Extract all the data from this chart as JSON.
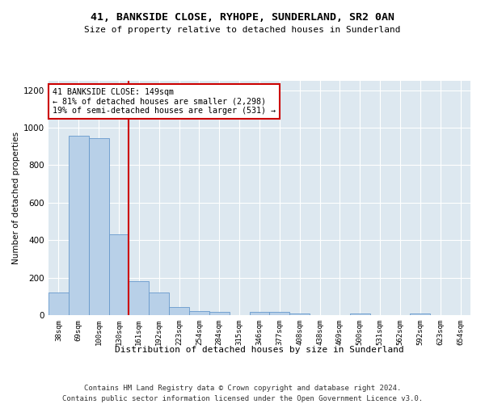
{
  "title": "41, BANKSIDE CLOSE, RYHOPE, SUNDERLAND, SR2 0AN",
  "subtitle": "Size of property relative to detached houses in Sunderland",
  "xlabel": "Distribution of detached houses by size in Sunderland",
  "ylabel": "Number of detached properties",
  "categories": [
    "38sqm",
    "69sqm",
    "100sqm",
    "130sqm",
    "161sqm",
    "192sqm",
    "223sqm",
    "254sqm",
    "284sqm",
    "315sqm",
    "346sqm",
    "377sqm",
    "408sqm",
    "438sqm",
    "469sqm",
    "500sqm",
    "531sqm",
    "562sqm",
    "592sqm",
    "623sqm",
    "654sqm"
  ],
  "values": [
    120,
    955,
    945,
    430,
    183,
    122,
    45,
    22,
    18,
    0,
    18,
    18,
    10,
    0,
    0,
    10,
    0,
    0,
    10,
    0,
    0
  ],
  "bar_color": "#b8d0e8",
  "bar_edge_color": "#6699cc",
  "annotation_line1": "41 BANKSIDE CLOSE: 149sqm",
  "annotation_line2": "← 81% of detached houses are smaller (2,298)",
  "annotation_line3": "19% of semi-detached houses are larger (531) →",
  "annotation_box_color": "#ffffff",
  "annotation_box_edge": "#cc0000",
  "red_line_color": "#cc0000",
  "ylim": [
    0,
    1250
  ],
  "yticks": [
    0,
    200,
    400,
    600,
    800,
    1000,
    1200
  ],
  "footer1": "Contains HM Land Registry data © Crown copyright and database right 2024.",
  "footer2": "Contains public sector information licensed under the Open Government Licence v3.0.",
  "bg_color": "#dde8f0",
  "fig_bg_color": "#ffffff"
}
